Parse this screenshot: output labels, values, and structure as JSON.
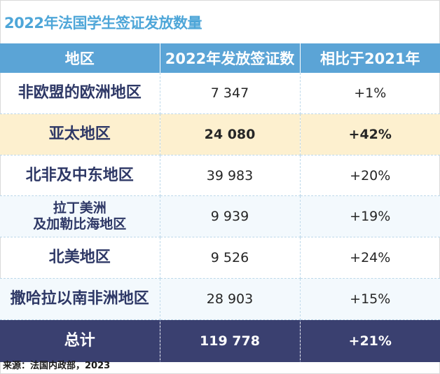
{
  "title": "2022年法国学生签证发放数量",
  "source": "来源：法国内政部，2023",
  "chart_data": {
    "type": "table",
    "columns": [
      "地区",
      "2022年发放签证数",
      "相比于2021年"
    ],
    "rows": [
      {
        "region": "非欧盟的欧洲地区",
        "visas": "7 347",
        "change": "+1%"
      },
      {
        "region": "亚太地区",
        "visas": "24 080",
        "change": "+42%"
      },
      {
        "region": "北非及中东地区",
        "visas": "39 983",
        "change": "+20%"
      },
      {
        "region": "拉丁美洲",
        "region_line2": "及加勒比海地区",
        "visas": "9 939",
        "change": "+19%"
      },
      {
        "region": "北美地区",
        "visas": "9 526",
        "change": "+24%"
      },
      {
        "region": "撒哈拉以南非洲地区",
        "visas": "28 903",
        "change": "+15%"
      }
    ],
    "total": {
      "region": "总计",
      "visas": "119 778",
      "change": "+21%"
    },
    "highlight_row": 1,
    "colors": {
      "header": "#5ba4d6",
      "highlight": "#fdf0cf",
      "total": "#3a4070",
      "title": "#4ea6d8",
      "region_text": "#2e3866"
    }
  }
}
